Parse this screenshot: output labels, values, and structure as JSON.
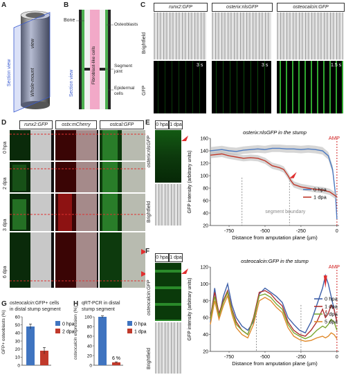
{
  "panels": {
    "A": {
      "letter": "A",
      "section_view": "Section view",
      "view": "view",
      "whole_mount": "Whole-mount"
    },
    "B": {
      "letter": "B",
      "section_view": "Section view",
      "bone": "Bone",
      "osteoblasts": "Osteoblasts",
      "fibroblast": "Fibroblast-like cells",
      "segment_joint": "Segment joint",
      "epidermal": "Epidermal cells"
    },
    "C": {
      "letter": "C",
      "cols": [
        "runx2:GFP",
        "osterix:nlsGFP",
        "osteocalcin:GFP"
      ],
      "rows": [
        "Brightfield",
        "GFP"
      ],
      "times": [
        "3 s",
        "3 s",
        "1.5 s"
      ]
    },
    "D": {
      "letter": "D",
      "cols": [
        "runx2:GFP",
        "ostx:mCherry",
        "ostcal:GFP"
      ],
      "rows": [
        "0 hpa",
        "2 dpa",
        "3 dpa",
        "6 dpa"
      ]
    },
    "E": {
      "letter": "E",
      "hdr": [
        "0 hpa",
        "1 dpa"
      ],
      "ylabel_img": "osterix:nlsGFP",
      "brightfield": "Brightfield"
    },
    "F": {
      "letter": "F",
      "hdr": [
        "0 hpa",
        "1 dpa"
      ],
      "ylabel_img": "osteocalcin:GFP",
      "brightfield": "Brightfield"
    },
    "G": {
      "letter": "G",
      "title_it": "osteocalcin",
      "title_rest": ":GFP+ cells",
      "title2": "in distal stump segment",
      "ylabel": "GFP+ osteoblasts (%)",
      "legend": [
        "0 hpa",
        "2 dpa"
      ]
    },
    "H": {
      "letter": "H",
      "title": "qRT-PCR in distal",
      "title2": "stump segment",
      "ylabel_it": "osteocalcin",
      "ylabel_rest": "expression (%)",
      "legend": [
        "0 hpa",
        "1 dpa"
      ],
      "bar_label": "6 %"
    }
  },
  "chart_data": [
    {
      "type": "line",
      "title": "osterix:nlsGFP in the stump",
      "xlabel": "Distance from amputation plane (µm)",
      "ylabel": "GFP intensity (arbitrary units)",
      "xlim": [
        -880,
        15
      ],
      "ylim": [
        20,
        160
      ],
      "xticks": [
        -750,
        -500,
        -250,
        0
      ],
      "yticks": [
        20,
        40,
        60,
        80,
        100,
        120,
        140,
        160
      ],
      "annotations": {
        "amp": "AMP",
        "boundary": "segment boundary"
      },
      "series": [
        {
          "name": "0 hpa",
          "color": "#4a78c0",
          "points": [
            [
              -880,
              140
            ],
            [
              -800,
              142
            ],
            [
              -750,
              140
            ],
            [
              -700,
              139
            ],
            [
              -650,
              141
            ],
            [
              -600,
              142
            ],
            [
              -550,
              143
            ],
            [
              -500,
              142
            ],
            [
              -450,
              144
            ],
            [
              -400,
              144
            ],
            [
              -350,
              143
            ],
            [
              -300,
              143
            ],
            [
              -250,
              142
            ],
            [
              -200,
              143
            ],
            [
              -150,
              142
            ],
            [
              -100,
              140
            ],
            [
              -60,
              132
            ],
            [
              -30,
              110
            ],
            [
              -10,
              70
            ],
            [
              0,
              30
            ]
          ]
        },
        {
          "name": "1 dpa",
          "color": "#c0392b",
          "points": [
            [
              -880,
              133
            ],
            [
              -800,
              135
            ],
            [
              -750,
              132
            ],
            [
              -700,
              130
            ],
            [
              -650,
              128
            ],
            [
              -600,
              129
            ],
            [
              -550,
              128
            ],
            [
              -500,
              124
            ],
            [
              -450,
              116
            ],
            [
              -400,
              113
            ],
            [
              -370,
              110
            ],
            [
              -340,
              100
            ],
            [
              -320,
              92
            ],
            [
              -300,
              86
            ],
            [
              -250,
              82
            ],
            [
              -200,
              80
            ],
            [
              -150,
              78
            ],
            [
              -100,
              77
            ],
            [
              -50,
              74
            ],
            [
              0,
              66
            ]
          ]
        }
      ]
    },
    {
      "type": "line",
      "title": "osteocalcin:GFP in the stump",
      "xlabel": "Distance from amputation plane (µm)",
      "ylabel": "GFP intensity (arbitrary units)",
      "xlim": [
        -880,
        15
      ],
      "ylim": [
        20,
        120
      ],
      "xticks": [
        -750,
        -500,
        -250,
        0
      ],
      "yticks": [
        20,
        30,
        40,
        50,
        60,
        70,
        80,
        90,
        100,
        110,
        120
      ],
      "annotations": {
        "amp": "AMP",
        "star": "*"
      },
      "series": [
        {
          "name": "0 hpa",
          "color": "#3d5fa8",
          "points": [
            [
              -880,
              55
            ],
            [
              -850,
              95
            ],
            [
              -820,
              60
            ],
            [
              -790,
              85
            ],
            [
              -760,
              100
            ],
            [
              -730,
              75
            ],
            [
              -700,
              60
            ],
            [
              -660,
              50
            ],
            [
              -620,
              45
            ],
            [
              -580,
              55
            ],
            [
              -540,
              88
            ],
            [
              -500,
              95
            ],
            [
              -460,
              90
            ],
            [
              -420,
              85
            ],
            [
              -380,
              78
            ],
            [
              -340,
              60
            ],
            [
              -300,
              52
            ],
            [
              -260,
              45
            ],
            [
              -220,
              42
            ],
            [
              -180,
              55
            ],
            [
              -140,
              75
            ],
            [
              -100,
              95
            ],
            [
              -80,
              110
            ],
            [
              -60,
              100
            ],
            [
              -40,
              85
            ],
            [
              -20,
              70
            ],
            [
              0,
              55
            ]
          ]
        },
        {
          "name": "1 dpa",
          "color": "#b03030",
          "points": [
            [
              -880,
              60
            ],
            [
              -850,
              90
            ],
            [
              -820,
              65
            ],
            [
              -790,
              80
            ],
            [
              -760,
              92
            ],
            [
              -730,
              70
            ],
            [
              -700,
              55
            ],
            [
              -660,
              45
            ],
            [
              -620,
              40
            ],
            [
              -580,
              60
            ],
            [
              -540,
              90
            ],
            [
              -500,
              92
            ],
            [
              -460,
              88
            ],
            [
              -420,
              80
            ],
            [
              -380,
              74
            ],
            [
              -340,
              55
            ],
            [
              -300,
              45
            ],
            [
              -260,
              40
            ],
            [
              -220,
              38
            ],
            [
              -180,
              45
            ],
            [
              -140,
              55
            ],
            [
              -100,
              70
            ],
            [
              -80,
              60
            ],
            [
              -60,
              65
            ],
            [
              -40,
              75
            ],
            [
              -20,
              70
            ],
            [
              0,
              55
            ]
          ]
        },
        {
          "name": "2 dpa",
          "color": "#7aa832",
          "points": [
            [
              -880,
              58
            ],
            [
              -850,
              85
            ],
            [
              -820,
              62
            ],
            [
              -790,
              78
            ],
            [
              -760,
              90
            ],
            [
              -730,
              68
            ],
            [
              -700,
              52
            ],
            [
              -660,
              45
            ],
            [
              -620,
              40
            ],
            [
              -580,
              58
            ],
            [
              -540,
              86
            ],
            [
              -500,
              88
            ],
            [
              -460,
              84
            ],
            [
              -420,
              76
            ],
            [
              -380,
              70
            ],
            [
              -340,
              52
            ],
            [
              -300,
              42
            ],
            [
              -260,
              38
            ],
            [
              -220,
              35
            ],
            [
              -180,
              38
            ],
            [
              -140,
              45
            ],
            [
              -100,
              50
            ],
            [
              -80,
              48
            ],
            [
              -60,
              52
            ],
            [
              -40,
              58
            ],
            [
              -20,
              55
            ],
            [
              0,
              45
            ]
          ]
        },
        {
          "name": "5 dpa",
          "color": "#e08a2c",
          "points": [
            [
              -880,
              52
            ],
            [
              -850,
              80
            ],
            [
              -820,
              58
            ],
            [
              -790,
              74
            ],
            [
              -760,
              86
            ],
            [
              -730,
              64
            ],
            [
              -700,
              48
            ],
            [
              -660,
              40
            ],
            [
              -620,
              36
            ],
            [
              -580,
              52
            ],
            [
              -540,
              80
            ],
            [
              -500,
              84
            ],
            [
              -460,
              80
            ],
            [
              -420,
              72
            ],
            [
              -380,
              66
            ],
            [
              -340,
              48
            ],
            [
              -300,
              38
            ],
            [
              -260,
              34
            ],
            [
              -220,
              32
            ],
            [
              -180,
              33
            ],
            [
              -140,
              36
            ],
            [
              -100,
              38
            ],
            [
              -80,
              36
            ],
            [
              -60,
              38
            ],
            [
              -40,
              42
            ],
            [
              -20,
              40
            ],
            [
              0,
              35
            ]
          ]
        }
      ]
    },
    {
      "type": "bar",
      "title": "osteocalcin:GFP+ cells in distal stump segment",
      "ylabel": "GFP+ osteoblasts (%)",
      "categories": [
        "0 hpa",
        "2 dpa"
      ],
      "values": [
        48,
        18
      ],
      "errors": [
        3,
        4
      ],
      "colors": [
        "#3f74c0",
        "#c0392b"
      ],
      "ylim": [
        0,
        60
      ],
      "yticks": [
        0,
        10,
        20,
        30,
        40,
        50,
        60
      ]
    },
    {
      "type": "bar",
      "title": "qRT-PCR in distal stump segment",
      "ylabel": "osteocalcin expression (%)",
      "categories": [
        "0 hpa",
        "1 dpa"
      ],
      "values": [
        100,
        6
      ],
      "errors": [
        2,
        1
      ],
      "colors": [
        "#3f74c0",
        "#c0392b"
      ],
      "ylim": [
        0,
        100
      ],
      "yticks": [
        0,
        20,
        40,
        60,
        80,
        100
      ]
    }
  ]
}
